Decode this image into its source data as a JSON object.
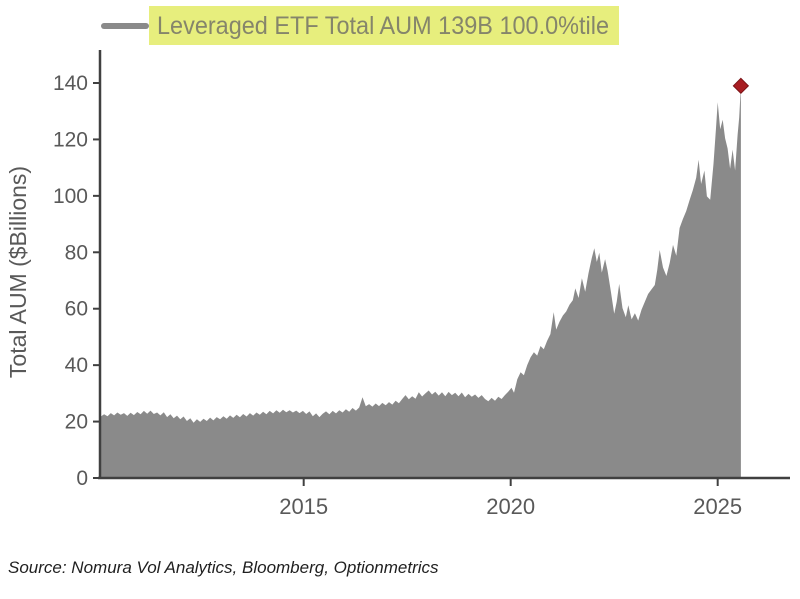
{
  "legend": {
    "label": "Leveraged ETF Total AUM 139B 100.0%tile"
  },
  "source_note": "Source: Nomura Vol Analytics, Bloomberg, Optionmetrics",
  "chart_data": {
    "type": "area",
    "title": "",
    "xlabel": "",
    "ylabel": "Total AUM ($Billions)",
    "ylim": [
      0,
      140
    ],
    "xlim": [
      2010.08,
      2026.7
    ],
    "y_ticks": [
      0,
      20,
      40,
      60,
      80,
      100,
      120,
      140
    ],
    "x_ticks": [
      2015,
      2020,
      2025
    ],
    "grid": false,
    "legend_position": "top-left",
    "colors": {
      "area": "#8a8a8a",
      "axis": "#404040",
      "tick_text": "#595959",
      "legend_text": "#85856b",
      "legend_highlight": "#e7ee7d",
      "marker": "#a81d22",
      "source_text": "#1f1f1f"
    },
    "marker": {
      "x": 2025.56,
      "y": 139,
      "note": "latest value 139B"
    },
    "series": [
      {
        "name": "Leveraged ETF Total AUM",
        "points": [
          [
            2010.1,
            21.8
          ],
          [
            2010.18,
            22.6
          ],
          [
            2010.26,
            21.9
          ],
          [
            2010.34,
            23.0
          ],
          [
            2010.42,
            22.2
          ],
          [
            2010.5,
            23.2
          ],
          [
            2010.58,
            22.4
          ],
          [
            2010.66,
            23.0
          ],
          [
            2010.74,
            22.0
          ],
          [
            2010.82,
            23.1
          ],
          [
            2010.9,
            22.3
          ],
          [
            2010.98,
            23.4
          ],
          [
            2011.06,
            22.6
          ],
          [
            2011.14,
            23.8
          ],
          [
            2011.22,
            22.8
          ],
          [
            2011.3,
            23.9
          ],
          [
            2011.38,
            22.7
          ],
          [
            2011.46,
            23.2
          ],
          [
            2011.54,
            22.2
          ],
          [
            2011.62,
            23.3
          ],
          [
            2011.7,
            21.6
          ],
          [
            2011.78,
            22.6
          ],
          [
            2011.86,
            21.2
          ],
          [
            2011.94,
            22.1
          ],
          [
            2012.02,
            20.8
          ],
          [
            2012.1,
            21.8
          ],
          [
            2012.18,
            20.2
          ],
          [
            2012.26,
            21.2
          ],
          [
            2012.34,
            19.6
          ],
          [
            2012.42,
            20.8
          ],
          [
            2012.5,
            19.9
          ],
          [
            2012.58,
            21.0
          ],
          [
            2012.66,
            20.2
          ],
          [
            2012.74,
            21.4
          ],
          [
            2012.82,
            20.4
          ],
          [
            2012.9,
            21.6
          ],
          [
            2012.98,
            20.8
          ],
          [
            2013.06,
            21.9
          ],
          [
            2013.14,
            21.0
          ],
          [
            2013.22,
            22.2
          ],
          [
            2013.3,
            21.3
          ],
          [
            2013.38,
            22.4
          ],
          [
            2013.46,
            21.5
          ],
          [
            2013.54,
            22.7
          ],
          [
            2013.62,
            21.8
          ],
          [
            2013.7,
            23.0
          ],
          [
            2013.78,
            22.1
          ],
          [
            2013.86,
            23.2
          ],
          [
            2013.94,
            22.4
          ],
          [
            2014.02,
            23.5
          ],
          [
            2014.1,
            22.6
          ],
          [
            2014.18,
            23.8
          ],
          [
            2014.26,
            22.9
          ],
          [
            2014.34,
            24.0
          ],
          [
            2014.42,
            23.1
          ],
          [
            2014.5,
            24.2
          ],
          [
            2014.58,
            23.3
          ],
          [
            2014.66,
            24.0
          ],
          [
            2014.74,
            23.2
          ],
          [
            2014.82,
            23.9
          ],
          [
            2014.9,
            23.0
          ],
          [
            2014.98,
            23.8
          ],
          [
            2015.06,
            22.7
          ],
          [
            2015.14,
            23.6
          ],
          [
            2015.22,
            21.9
          ],
          [
            2015.3,
            22.9
          ],
          [
            2015.38,
            21.6
          ],
          [
            2015.46,
            22.8
          ],
          [
            2015.54,
            23.6
          ],
          [
            2015.62,
            22.6
          ],
          [
            2015.7,
            23.8
          ],
          [
            2015.78,
            22.9
          ],
          [
            2015.86,
            24.0
          ],
          [
            2015.94,
            23.2
          ],
          [
            2016.02,
            24.4
          ],
          [
            2016.1,
            23.5
          ],
          [
            2016.18,
            24.8
          ],
          [
            2016.26,
            23.9
          ],
          [
            2016.34,
            25.0
          ],
          [
            2016.42,
            28.6
          ],
          [
            2016.5,
            25.4
          ],
          [
            2016.58,
            26.2
          ],
          [
            2016.66,
            25.3
          ],
          [
            2016.74,
            26.4
          ],
          [
            2016.82,
            25.5
          ],
          [
            2016.9,
            26.6
          ],
          [
            2016.98,
            25.8
          ],
          [
            2017.06,
            26.9
          ],
          [
            2017.14,
            26.0
          ],
          [
            2017.22,
            27.4
          ],
          [
            2017.3,
            26.5
          ],
          [
            2017.38,
            28.0
          ],
          [
            2017.46,
            29.4
          ],
          [
            2017.54,
            27.9
          ],
          [
            2017.62,
            29.0
          ],
          [
            2017.7,
            28.1
          ],
          [
            2017.78,
            30.4
          ],
          [
            2017.86,
            28.9
          ],
          [
            2017.94,
            30.0
          ],
          [
            2018.02,
            31.0
          ],
          [
            2018.1,
            29.6
          ],
          [
            2018.18,
            30.6
          ],
          [
            2018.26,
            29.2
          ],
          [
            2018.34,
            30.4
          ],
          [
            2018.42,
            29.0
          ],
          [
            2018.5,
            30.5
          ],
          [
            2018.58,
            29.4
          ],
          [
            2018.66,
            30.2
          ],
          [
            2018.74,
            29.0
          ],
          [
            2018.82,
            30.3
          ],
          [
            2018.9,
            28.6
          ],
          [
            2018.98,
            29.8
          ],
          [
            2019.06,
            28.8
          ],
          [
            2019.14,
            29.6
          ],
          [
            2019.22,
            28.4
          ],
          [
            2019.3,
            29.4
          ],
          [
            2019.38,
            28.0
          ],
          [
            2019.46,
            27.2
          ],
          [
            2019.54,
            28.4
          ],
          [
            2019.62,
            27.4
          ],
          [
            2019.7,
            28.8
          ],
          [
            2019.78,
            28.0
          ],
          [
            2019.86,
            29.4
          ],
          [
            2019.94,
            30.6
          ],
          [
            2020.02,
            32.0
          ],
          [
            2020.08,
            30.2
          ],
          [
            2020.16,
            35.0
          ],
          [
            2020.24,
            37.5
          ],
          [
            2020.32,
            36.4
          ],
          [
            2020.4,
            40.0
          ],
          [
            2020.48,
            42.8
          ],
          [
            2020.56,
            44.6
          ],
          [
            2020.64,
            43.4
          ],
          [
            2020.72,
            46.8
          ],
          [
            2020.8,
            45.6
          ],
          [
            2020.88,
            48.6
          ],
          [
            2020.96,
            51.0
          ],
          [
            2021.04,
            58.8
          ],
          [
            2021.1,
            52.6
          ],
          [
            2021.18,
            55.4
          ],
          [
            2021.26,
            57.6
          ],
          [
            2021.34,
            59.0
          ],
          [
            2021.42,
            61.4
          ],
          [
            2021.5,
            63.0
          ],
          [
            2021.56,
            67.2
          ],
          [
            2021.64,
            63.8
          ],
          [
            2021.72,
            70.8
          ],
          [
            2021.8,
            66.0
          ],
          [
            2021.88,
            72.6
          ],
          [
            2021.96,
            78.0
          ],
          [
            2022.02,
            81.4
          ],
          [
            2022.08,
            76.6
          ],
          [
            2022.14,
            79.8
          ],
          [
            2022.2,
            72.8
          ],
          [
            2022.28,
            77.6
          ],
          [
            2022.34,
            73.4
          ],
          [
            2022.42,
            66.0
          ],
          [
            2022.5,
            58.2
          ],
          [
            2022.56,
            62.4
          ],
          [
            2022.62,
            68.8
          ],
          [
            2022.7,
            60.2
          ],
          [
            2022.78,
            57.0
          ],
          [
            2022.84,
            61.2
          ],
          [
            2022.92,
            56.2
          ],
          [
            2023.0,
            58.4
          ],
          [
            2023.08,
            55.8
          ],
          [
            2023.16,
            59.6
          ],
          [
            2023.24,
            62.4
          ],
          [
            2023.32,
            65.2
          ],
          [
            2023.4,
            66.8
          ],
          [
            2023.48,
            68.4
          ],
          [
            2023.54,
            73.6
          ],
          [
            2023.6,
            80.8
          ],
          [
            2023.68,
            74.6
          ],
          [
            2023.76,
            71.6
          ],
          [
            2023.84,
            76.2
          ],
          [
            2023.92,
            82.6
          ],
          [
            2024.0,
            78.8
          ],
          [
            2024.08,
            88.6
          ],
          [
            2024.16,
            91.8
          ],
          [
            2024.24,
            94.6
          ],
          [
            2024.32,
            98.4
          ],
          [
            2024.4,
            102.0
          ],
          [
            2024.48,
            106.4
          ],
          [
            2024.54,
            112.8
          ],
          [
            2024.6,
            104.2
          ],
          [
            2024.68,
            109.0
          ],
          [
            2024.74,
            99.8
          ],
          [
            2024.82,
            98.6
          ],
          [
            2024.9,
            111.4
          ],
          [
            2024.96,
            124.0
          ],
          [
            2025.0,
            133.2
          ],
          [
            2025.06,
            123.6
          ],
          [
            2025.12,
            127.0
          ],
          [
            2025.18,
            120.4
          ],
          [
            2025.24,
            116.8
          ],
          [
            2025.3,
            109.6
          ],
          [
            2025.36,
            116.4
          ],
          [
            2025.42,
            109.0
          ],
          [
            2025.48,
            121.6
          ],
          [
            2025.52,
            127.8
          ],
          [
            2025.56,
            139.0
          ]
        ]
      }
    ]
  }
}
